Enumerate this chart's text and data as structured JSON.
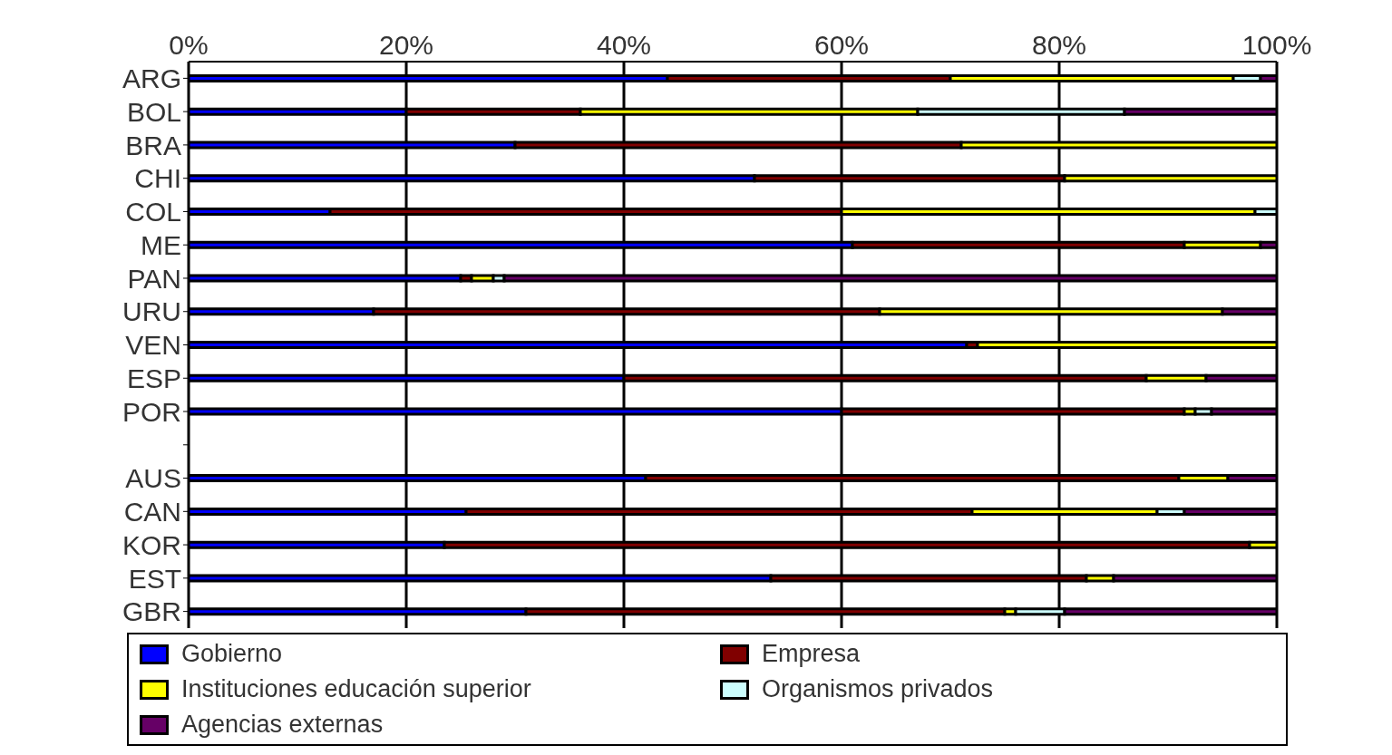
{
  "chart_data": {
    "type": "bar",
    "orientation": "horizontal",
    "stacked": true,
    "categories": [
      "ARG",
      "BOL",
      "BRA",
      "CHI",
      "COL",
      "ME",
      "PAN",
      "URU",
      "VEN",
      "ESP",
      "POR",
      null,
      "AUS",
      "CAN",
      "KOR",
      "EST",
      "GBR"
    ],
    "series": [
      {
        "name": "Gobierno",
        "color": "#0000ff",
        "values": [
          44,
          20,
          30,
          52,
          13,
          61,
          25,
          17,
          71.5,
          40,
          60,
          null,
          42,
          25.5,
          23.5,
          53.5,
          31
        ]
      },
      {
        "name": "Empresa",
        "color": "#800000",
        "values": [
          26,
          16,
          41,
          28.5,
          47,
          30.5,
          1,
          46.5,
          1,
          48,
          31.5,
          null,
          49,
          46.5,
          74,
          29,
          44
        ]
      },
      {
        "name": "Instituciones educación superior",
        "color": "#ffff00",
        "values": [
          26,
          31,
          29,
          19.5,
          38,
          7,
          2,
          31.5,
          27.5,
          5.5,
          1,
          null,
          4.5,
          17,
          2.5,
          2.5,
          1
        ]
      },
      {
        "name": "Organismos privados",
        "color": "#ccffff",
        "values": [
          2.5,
          19,
          0,
          0,
          2,
          0,
          1,
          0,
          0,
          0,
          1.5,
          null,
          0,
          2.5,
          0,
          0,
          4.5
        ]
      },
      {
        "name": "Agencias externas",
        "color": "#660066",
        "values": [
          1.5,
          14,
          0,
          0,
          0,
          1.5,
          71,
          5,
          0,
          6.5,
          6,
          null,
          4.5,
          8.5,
          0,
          15,
          19.5
        ]
      }
    ],
    "xlim": [
      0,
      100
    ],
    "xticks": [
      {
        "value": 0,
        "label": "0%"
      },
      {
        "value": 20,
        "label": "20%"
      },
      {
        "value": 40,
        "label": "40%"
      },
      {
        "value": 60,
        "label": "60%"
      },
      {
        "value": 80,
        "label": "80%"
      },
      {
        "value": 100,
        "label": "100%"
      }
    ],
    "grid": "x",
    "legend": "bottom"
  }
}
